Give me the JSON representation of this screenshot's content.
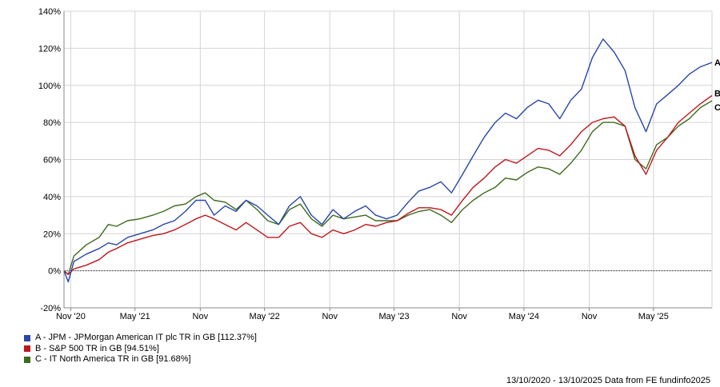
{
  "chart_data": {
    "type": "line",
    "xlim": [
      "2020-10-13",
      "2025-10-13"
    ],
    "ylim": [
      -20,
      140
    ],
    "y_ticks": [
      -20,
      0,
      20,
      40,
      60,
      80,
      100,
      120,
      140
    ],
    "y_tick_labels": [
      "-20%",
      "0%",
      "20%",
      "40%",
      "60%",
      "80%",
      "100%",
      "120%",
      "140%"
    ],
    "x_ticks": [
      {
        "date": "2020-11-01",
        "label": "Nov '20"
      },
      {
        "date": "2021-05-01",
        "label": "May '21"
      },
      {
        "date": "2021-11-01",
        "label": "Nov"
      },
      {
        "date": "2022-05-01",
        "label": "May '22"
      },
      {
        "date": "2022-11-01",
        "label": "Nov"
      },
      {
        "date": "2023-05-01",
        "label": "May '23"
      },
      {
        "date": "2023-11-01",
        "label": "Nov"
      },
      {
        "date": "2024-05-01",
        "label": "May '24"
      },
      {
        "date": "2024-11-01",
        "label": "Nov"
      },
      {
        "date": "2025-05-01",
        "label": "May '25"
      }
    ],
    "grid": true,
    "zero_line": true,
    "series": [
      {
        "name": "A - JPM - JPMorgan American IT plc TR in GB [112.37%]",
        "end_label": "A",
        "color": "#2847a7",
        "data": [
          [
            "2020-10-13",
            0
          ],
          [
            "2020-10-25",
            -6
          ],
          [
            "2020-11-10",
            5
          ],
          [
            "2020-12-15",
            9
          ],
          [
            "2021-01-20",
            12
          ],
          [
            "2021-02-15",
            15
          ],
          [
            "2021-03-10",
            14
          ],
          [
            "2021-04-10",
            18
          ],
          [
            "2021-05-15",
            20
          ],
          [
            "2021-06-20",
            22
          ],
          [
            "2021-07-20",
            25
          ],
          [
            "2021-08-20",
            27
          ],
          [
            "2021-09-20",
            32
          ],
          [
            "2021-10-20",
            38
          ],
          [
            "2021-11-15",
            38
          ],
          [
            "2021-12-10",
            30
          ],
          [
            "2022-01-10",
            35
          ],
          [
            "2022-02-10",
            32
          ],
          [
            "2022-03-10",
            38
          ],
          [
            "2022-04-10",
            35
          ],
          [
            "2022-05-10",
            30
          ],
          [
            "2022-06-10",
            25
          ],
          [
            "2022-07-10",
            35
          ],
          [
            "2022-08-10",
            40
          ],
          [
            "2022-09-10",
            30
          ],
          [
            "2022-10-10",
            25
          ],
          [
            "2022-11-10",
            33
          ],
          [
            "2022-12-10",
            28
          ],
          [
            "2023-01-10",
            32
          ],
          [
            "2023-02-10",
            35
          ],
          [
            "2023-03-10",
            30
          ],
          [
            "2023-04-10",
            28
          ],
          [
            "2023-05-10",
            30
          ],
          [
            "2023-06-10",
            37
          ],
          [
            "2023-07-10",
            43
          ],
          [
            "2023-08-10",
            45
          ],
          [
            "2023-09-10",
            48
          ],
          [
            "2023-10-10",
            42
          ],
          [
            "2023-11-10",
            52
          ],
          [
            "2023-12-10",
            62
          ],
          [
            "2024-01-10",
            72
          ],
          [
            "2024-02-10",
            80
          ],
          [
            "2024-03-10",
            85
          ],
          [
            "2024-04-10",
            82
          ],
          [
            "2024-05-10",
            88
          ],
          [
            "2024-06-10",
            92
          ],
          [
            "2024-07-10",
            90
          ],
          [
            "2024-08-10",
            82
          ],
          [
            "2024-09-10",
            92
          ],
          [
            "2024-10-10",
            98
          ],
          [
            "2024-11-10",
            115
          ],
          [
            "2024-12-10",
            125
          ],
          [
            "2025-01-10",
            118
          ],
          [
            "2025-02-10",
            108
          ],
          [
            "2025-03-10",
            88
          ],
          [
            "2025-04-10",
            75
          ],
          [
            "2025-05-10",
            90
          ],
          [
            "2025-06-10",
            95
          ],
          [
            "2025-07-10",
            100
          ],
          [
            "2025-08-10",
            106
          ],
          [
            "2025-09-10",
            110
          ],
          [
            "2025-10-13",
            112.37
          ]
        ]
      },
      {
        "name": "B - S&P 500 TR in GB [94.51%]",
        "end_label": "B",
        "color": "#c0171b",
        "data": [
          [
            "2020-10-13",
            0
          ],
          [
            "2020-10-25",
            -2
          ],
          [
            "2020-11-10",
            1
          ],
          [
            "2020-12-15",
            3
          ],
          [
            "2021-01-20",
            6
          ],
          [
            "2021-02-15",
            10
          ],
          [
            "2021-03-10",
            12
          ],
          [
            "2021-04-10",
            15
          ],
          [
            "2021-05-15",
            17
          ],
          [
            "2021-06-20",
            19
          ],
          [
            "2021-07-20",
            20
          ],
          [
            "2021-08-20",
            22
          ],
          [
            "2021-09-20",
            25
          ],
          [
            "2021-10-20",
            28
          ],
          [
            "2021-11-15",
            30
          ],
          [
            "2021-12-10",
            28
          ],
          [
            "2022-01-10",
            25
          ],
          [
            "2022-02-10",
            22
          ],
          [
            "2022-03-10",
            26
          ],
          [
            "2022-04-10",
            22
          ],
          [
            "2022-05-10",
            18
          ],
          [
            "2022-06-10",
            18
          ],
          [
            "2022-07-10",
            24
          ],
          [
            "2022-08-10",
            26
          ],
          [
            "2022-09-10",
            20
          ],
          [
            "2022-10-10",
            18
          ],
          [
            "2022-11-10",
            22
          ],
          [
            "2022-12-10",
            20
          ],
          [
            "2023-01-10",
            22
          ],
          [
            "2023-02-10",
            25
          ],
          [
            "2023-03-10",
            24
          ],
          [
            "2023-04-10",
            26
          ],
          [
            "2023-05-10",
            27
          ],
          [
            "2023-06-10",
            31
          ],
          [
            "2023-07-10",
            34
          ],
          [
            "2023-08-10",
            34
          ],
          [
            "2023-09-10",
            33
          ],
          [
            "2023-10-10",
            30
          ],
          [
            "2023-11-10",
            38
          ],
          [
            "2023-12-10",
            45
          ],
          [
            "2024-01-10",
            50
          ],
          [
            "2024-02-10",
            56
          ],
          [
            "2024-03-10",
            60
          ],
          [
            "2024-04-10",
            58
          ],
          [
            "2024-05-10",
            62
          ],
          [
            "2024-06-10",
            66
          ],
          [
            "2024-07-10",
            65
          ],
          [
            "2024-08-10",
            62
          ],
          [
            "2024-09-10",
            68
          ],
          [
            "2024-10-10",
            75
          ],
          [
            "2024-11-10",
            80
          ],
          [
            "2024-12-10",
            82
          ],
          [
            "2025-01-10",
            83
          ],
          [
            "2025-02-10",
            78
          ],
          [
            "2025-03-10",
            62
          ],
          [
            "2025-04-10",
            52
          ],
          [
            "2025-05-10",
            65
          ],
          [
            "2025-06-10",
            72
          ],
          [
            "2025-07-10",
            80
          ],
          [
            "2025-08-10",
            85
          ],
          [
            "2025-09-10",
            90
          ],
          [
            "2025-10-13",
            94.51
          ]
        ]
      },
      {
        "name": "C - IT North America TR in GB [91.68%]",
        "end_label": "C",
        "color": "#3d6b1c",
        "data": [
          [
            "2020-10-13",
            0
          ],
          [
            "2020-10-25",
            -2
          ],
          [
            "2020-11-10",
            8
          ],
          [
            "2020-12-15",
            14
          ],
          [
            "2021-01-20",
            18
          ],
          [
            "2021-02-15",
            25
          ],
          [
            "2021-03-10",
            24
          ],
          [
            "2021-04-10",
            27
          ],
          [
            "2021-05-15",
            28
          ],
          [
            "2021-06-20",
            30
          ],
          [
            "2021-07-20",
            32
          ],
          [
            "2021-08-20",
            35
          ],
          [
            "2021-09-20",
            36
          ],
          [
            "2021-10-20",
            40
          ],
          [
            "2021-11-15",
            42
          ],
          [
            "2021-12-10",
            38
          ],
          [
            "2022-01-10",
            37
          ],
          [
            "2022-02-10",
            33
          ],
          [
            "2022-03-10",
            38
          ],
          [
            "2022-04-10",
            33
          ],
          [
            "2022-05-10",
            27
          ],
          [
            "2022-06-10",
            25
          ],
          [
            "2022-07-10",
            33
          ],
          [
            "2022-08-10",
            36
          ],
          [
            "2022-09-10",
            28
          ],
          [
            "2022-10-10",
            24
          ],
          [
            "2022-11-10",
            30
          ],
          [
            "2022-12-10",
            28
          ],
          [
            "2023-01-10",
            29
          ],
          [
            "2023-02-10",
            30
          ],
          [
            "2023-03-10",
            27
          ],
          [
            "2023-04-10",
            27
          ],
          [
            "2023-05-10",
            27
          ],
          [
            "2023-06-10",
            30
          ],
          [
            "2023-07-10",
            32
          ],
          [
            "2023-08-10",
            33
          ],
          [
            "2023-09-10",
            30
          ],
          [
            "2023-10-10",
            26
          ],
          [
            "2023-11-10",
            33
          ],
          [
            "2023-12-10",
            38
          ],
          [
            "2024-01-10",
            42
          ],
          [
            "2024-02-10",
            45
          ],
          [
            "2024-03-10",
            50
          ],
          [
            "2024-04-10",
            49
          ],
          [
            "2024-05-10",
            53
          ],
          [
            "2024-06-10",
            56
          ],
          [
            "2024-07-10",
            55
          ],
          [
            "2024-08-10",
            52
          ],
          [
            "2024-09-10",
            58
          ],
          [
            "2024-10-10",
            65
          ],
          [
            "2024-11-10",
            75
          ],
          [
            "2024-12-10",
            80
          ],
          [
            "2025-01-10",
            80
          ],
          [
            "2025-02-10",
            78
          ],
          [
            "2025-03-10",
            60
          ],
          [
            "2025-04-10",
            55
          ],
          [
            "2025-05-10",
            68
          ],
          [
            "2025-06-10",
            72
          ],
          [
            "2025-07-10",
            78
          ],
          [
            "2025-08-10",
            82
          ],
          [
            "2025-09-10",
            88
          ],
          [
            "2025-10-13",
            91.68
          ]
        ]
      }
    ]
  },
  "footer": "13/10/2020 - 13/10/2025 Data from FE fundinfo2025"
}
